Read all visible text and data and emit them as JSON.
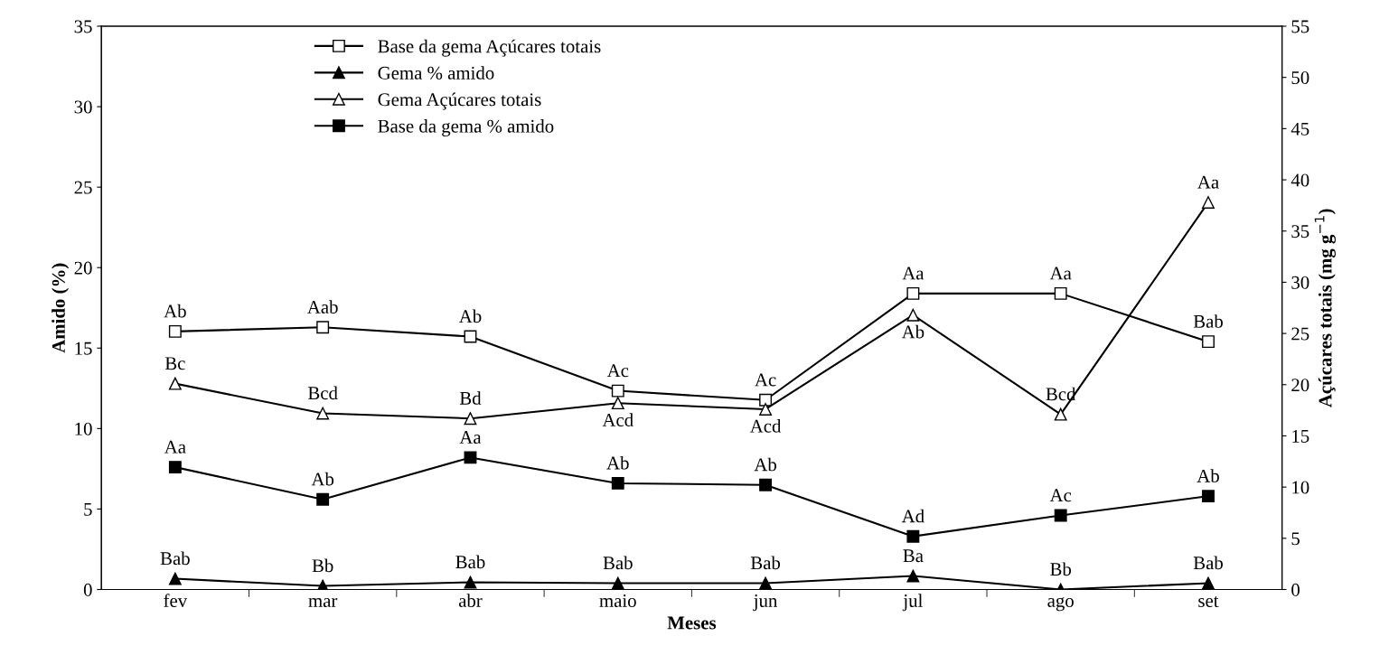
{
  "chart_data": {
    "type": "line",
    "xlabel": "Meses",
    "ylabel": "Amido (%)",
    "y2label": "Açúcares totais (mg g$^{−1}$)",
    "categories": [
      "fev",
      "mar",
      "abr",
      "maio",
      "jun",
      "jul",
      "ago",
      "set"
    ],
    "ylim": [
      0,
      35
    ],
    "yticks": [
      0,
      5,
      10,
      15,
      20,
      25,
      30,
      35
    ],
    "y2lim": [
      0,
      55
    ],
    "y2ticks": [
      0,
      5,
      10,
      15,
      20,
      25,
      30,
      35,
      40,
      45,
      50,
      55
    ],
    "legend": "top left",
    "grid": false,
    "line_style": "solid",
    "series": [
      {
        "name": "Base da gema Açúcares totais",
        "color": "#ffffff",
        "marker": "square",
        "axis": "y2",
        "values": [
          25.2,
          25.6,
          24.7,
          19.4,
          18.5,
          28.9,
          28.9,
          24.2
        ],
        "value_labels": [
          "Ab",
          "Aab",
          "Ab",
          "Ac",
          "Ac",
          "Aa",
          "Aa",
          "Bab"
        ]
      },
      {
        "name": "Gema % amido",
        "color": "#000000",
        "marker": "triangle",
        "values": [
          0.67,
          0.22,
          0.45,
          0.39,
          0.39,
          0.84,
          0,
          0.39
        ],
        "value_labels": [
          "Bab",
          "Bb",
          "Bab",
          "Bab",
          "Bab",
          "Ba",
          "Bb",
          "Bab"
        ]
      },
      {
        "name": "Gema Açúcares totais",
        "color": "#ffffff",
        "marker": "triangle",
        "axis": "y2",
        "values": [
          20.1,
          17.2,
          16.7,
          18.2,
          17.6,
          26.8,
          17.1,
          37.8
        ],
        "value_labels": [
          "Bc",
          "Bcd",
          "Bd",
          "Acd",
          "Acd",
          "Ab",
          "Bcd",
          "Aa"
        ]
      },
      {
        "name": "Base da gema % amido",
        "color": "#000000",
        "marker": "square",
        "values": [
          7.6,
          5.6,
          8.2,
          6.6,
          6.5,
          3.3,
          4.6,
          5.8
        ],
        "value_labels": [
          "Aa",
          "Ab",
          "Aa",
          "Ab",
          "Ab",
          "Ad",
          "Ac",
          "Ab"
        ]
      }
    ]
  }
}
